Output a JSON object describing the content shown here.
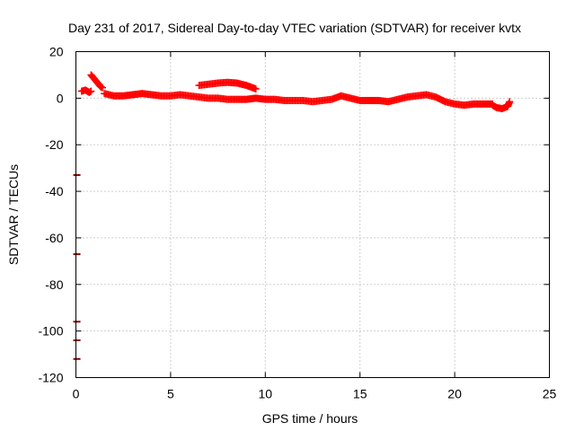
{
  "chart_data": {
    "type": "scatter",
    "title": "Day 231 of 2017, Sidereal Day-to-day VTEC variation (SDTVAR) for receiver kvtx",
    "xlabel": "GPS time / hours",
    "ylabel": "SDTVAR / TECUs",
    "xlim": [
      0,
      25
    ],
    "ylim": [
      -120,
      20
    ],
    "xticks": [
      0,
      5,
      10,
      15,
      20,
      25
    ],
    "yticks": [
      20,
      0,
      -20,
      -40,
      -60,
      -80,
      -100,
      -120
    ],
    "grid": true,
    "legend": "none",
    "point_color": "#ff0000",
    "outlier_color": "#8b0000",
    "outliers": [
      {
        "x": 0.05,
        "y": -33
      },
      {
        "x": 0.05,
        "y": -67
      },
      {
        "x": 0.05,
        "y": -96
      },
      {
        "x": 0.05,
        "y": -104
      },
      {
        "x": 0.05,
        "y": -112
      }
    ],
    "series": [
      {
        "x": [
          0.3,
          0.5,
          0.7,
          0.8
        ],
        "y": [
          3,
          3.5,
          2.5,
          3
        ]
      },
      {
        "x": [
          0.8,
          0.9,
          1.0,
          1.1,
          1.2,
          1.3,
          1.4
        ],
        "y": [
          10,
          9,
          8,
          7,
          6,
          5,
          4.5
        ]
      },
      {
        "x": [
          1.5,
          2.0,
          2.5,
          3.0,
          3.5,
          4.0,
          4.5,
          5.0,
          5.5,
          6.0,
          6.5,
          7.0,
          7.5,
          8.0,
          8.5,
          9.0,
          9.5,
          10.0,
          10.5,
          11.0,
          11.5,
          12.0,
          12.5,
          13.0,
          13.5,
          14.0,
          14.5,
          15.0,
          15.5,
          16.0,
          16.5,
          17.0,
          17.5,
          18.0,
          18.5,
          19.0,
          19.5,
          20.0,
          20.5,
          21.0,
          21.5,
          22.0
        ],
        "y": [
          2,
          1,
          1,
          1.5,
          2,
          1.5,
          1,
          1,
          1.5,
          1,
          0.5,
          0,
          0,
          -0.5,
          -0.5,
          -0.5,
          0,
          -0.5,
          -0.5,
          -1,
          -1,
          -1,
          -1.5,
          -1,
          -0.5,
          1,
          0,
          -1,
          -1,
          -1,
          -1.5,
          -0.5,
          0.5,
          1,
          1.5,
          0.5,
          -1.5,
          -2.5,
          -3,
          -2.5,
          -2.5,
          -2.5
        ]
      },
      {
        "x": [
          6.5,
          7.0,
          7.5,
          8.0,
          8.5,
          9.0,
          9.5
        ],
        "y": [
          5.5,
          6,
          6.5,
          6.8,
          6.5,
          5.5,
          4
        ]
      },
      {
        "x": [
          22.0,
          22.2,
          22.5,
          22.8,
          22.9
        ],
        "y": [
          -3,
          -4,
          -4.5,
          -3.5,
          -1.5
        ]
      }
    ]
  }
}
